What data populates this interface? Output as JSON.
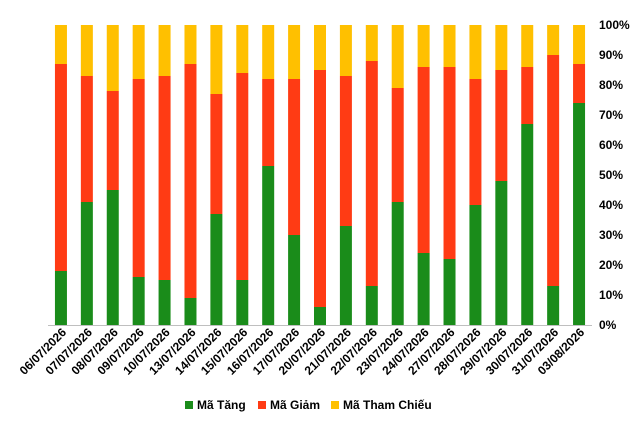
{
  "chart_data": {
    "type": "bar",
    "stacked": true,
    "categories": [
      "06/07/2026",
      "07/07/2026",
      "08/07/2026",
      "09/07/2026",
      "10/07/2026",
      "13/07/2026",
      "14/07/2026",
      "15/07/2026",
      "16/07/2026",
      "17/07/2026",
      "20/07/2026",
      "21/07/2026",
      "22/07/2026",
      "23/07/2026",
      "24/07/2026",
      "27/07/2026",
      "28/07/2026",
      "29/07/2026",
      "30/07/2026",
      "31/07/2026",
      "03/08/2026"
    ],
    "series": [
      {
        "name": "Mã Tăng",
        "color": "#1a8c1a",
        "values": [
          18,
          41,
          45,
          16,
          15,
          9,
          37,
          15,
          53,
          30,
          6,
          33,
          13,
          41,
          24,
          22,
          40,
          48,
          67,
          13,
          74
        ]
      },
      {
        "name": "Mã Giảm",
        "color": "#ff3b14",
        "values": [
          69,
          42,
          33,
          66,
          68,
          78,
          40,
          69,
          29,
          52,
          79,
          50,
          75,
          38,
          62,
          64,
          42,
          37,
          19,
          77,
          13
        ]
      },
      {
        "name": "Mã Tham Chiếu",
        "color": "#ffc000",
        "values": [
          13,
          17,
          22,
          18,
          17,
          13,
          23,
          16,
          18,
          18,
          15,
          17,
          12,
          21,
          14,
          14,
          18,
          15,
          14,
          10,
          13
        ]
      }
    ],
    "y_axis": {
      "position": "right",
      "ylim": [
        0,
        100
      ],
      "ticks": [
        "0%",
        "10%",
        "20%",
        "30%",
        "40%",
        "50%",
        "60%",
        "70%",
        "80%",
        "90%",
        "100%"
      ]
    },
    "grid": false,
    "legend_position": "bottom"
  }
}
